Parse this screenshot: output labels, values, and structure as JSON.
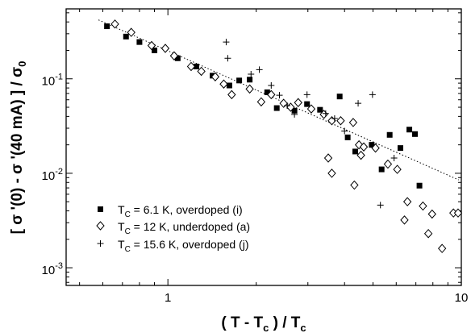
{
  "chart_data": {
    "type": "scatter",
    "x_scale": "log",
    "y_scale": "log",
    "xlim": [
      0.45,
      10.0
    ],
    "ylim": [
      0.00065,
      0.55
    ],
    "x_major_ticks": [
      {
        "value": 1,
        "label": "1"
      },
      {
        "value": 10,
        "label": "10"
      }
    ],
    "y_major_ticks": [
      {
        "value": 0.001,
        "base": "10",
        "exp": "-3"
      },
      {
        "value": 0.01,
        "base": "10",
        "exp": "-2"
      },
      {
        "value": 0.1,
        "base": "10",
        "exp": "-1"
      }
    ],
    "xlabel": {
      "open": "( T - T",
      "sub": "c",
      "mid": " ) / T",
      "sub2": "c"
    },
    "ylabel": {
      "part1": "[ σ '(0) - σ '(40 mA) ] / σ",
      "sub": "0"
    },
    "grid": false,
    "legend_position": "bottom-left",
    "series": [
      {
        "name": "T_C = 6.1 K, overdoped (i)",
        "legend": {
          "pre": "T",
          "sub": "C",
          "post": " = 6.1 K, overdoped (i)"
        },
        "marker": "filled-square",
        "points": [
          [
            0.62,
            0.36
          ],
          [
            0.72,
            0.28
          ],
          [
            0.8,
            0.245
          ],
          [
            0.9,
            0.2
          ],
          [
            1.08,
            0.165
          ],
          [
            1.25,
            0.135
          ],
          [
            1.42,
            0.108
          ],
          [
            1.75,
            0.096
          ],
          [
            1.9,
            0.098
          ],
          [
            1.62,
            0.085
          ],
          [
            2.18,
            0.072
          ],
          [
            2.35,
            0.049
          ],
          [
            2.7,
            0.046
          ],
          [
            2.98,
            0.054
          ],
          [
            3.3,
            0.047
          ],
          [
            3.85,
            0.065
          ],
          [
            4.1,
            0.024
          ],
          [
            4.35,
            0.017
          ],
          [
            4.95,
            0.02
          ],
          [
            5.35,
            0.011
          ],
          [
            5.7,
            0.0255
          ],
          [
            6.2,
            0.0185
          ],
          [
            6.65,
            0.029
          ],
          [
            6.95,
            0.026
          ],
          [
            7.2,
            0.0074
          ]
        ]
      },
      {
        "name": "T_C = 12 K, underdoped (a)",
        "legend": {
          "pre": "T",
          "sub": "C",
          "post": " = 12 K, underdoped (a)"
        },
        "marker": "open-diamond",
        "points": [
          [
            0.66,
            0.38
          ],
          [
            0.75,
            0.31
          ],
          [
            0.88,
            0.225
          ],
          [
            0.98,
            0.21
          ],
          [
            1.05,
            0.175
          ],
          [
            1.2,
            0.135
          ],
          [
            1.3,
            0.12
          ],
          [
            1.45,
            0.105
          ],
          [
            1.55,
            0.088
          ],
          [
            1.65,
            0.068
          ],
          [
            1.9,
            0.078
          ],
          [
            2.08,
            0.057
          ],
          [
            2.25,
            0.068
          ],
          [
            2.48,
            0.055
          ],
          [
            2.62,
            0.05
          ],
          [
            2.78,
            0.056
          ],
          [
            3.08,
            0.048
          ],
          [
            3.4,
            0.042
          ],
          [
            3.62,
            0.036
          ],
          [
            3.88,
            0.036
          ],
          [
            4.28,
            0.0345
          ],
          [
            4.48,
            0.02
          ],
          [
            4.65,
            0.019
          ],
          [
            3.52,
            0.0145
          ],
          [
            3.62,
            0.01
          ],
          [
            4.55,
            0.0155
          ],
          [
            5.1,
            0.0185
          ],
          [
            5.62,
            0.0125
          ],
          [
            4.32,
            0.0075
          ],
          [
            6.05,
            0.011
          ],
          [
            6.55,
            0.005
          ],
          [
            6.4,
            0.0032
          ],
          [
            7.4,
            0.0045
          ],
          [
            7.95,
            0.0037
          ],
          [
            7.72,
            0.0023
          ],
          [
            8.6,
            0.0016
          ],
          [
            9.4,
            0.0038
          ],
          [
            9.75,
            0.0038
          ]
        ]
      },
      {
        "name": "T_C = 15.6 K, overdoped (j)",
        "legend": {
          "pre": "T",
          "sub": "C",
          "post": " = 15.6 K, overdoped (j)"
        },
        "marker": "plus",
        "points": [
          [
            1.58,
            0.245
          ],
          [
            1.6,
            0.165
          ],
          [
            1.92,
            0.112
          ],
          [
            2.05,
            0.125
          ],
          [
            2.25,
            0.085
          ],
          [
            2.4,
            0.067
          ],
          [
            2.55,
            0.052
          ],
          [
            2.7,
            0.042
          ],
          [
            2.98,
            0.068
          ],
          [
            3.45,
            0.043
          ],
          [
            3.7,
            0.038
          ],
          [
            4.0,
            0.028
          ],
          [
            4.45,
            0.055
          ],
          [
            4.98,
            0.068
          ],
          [
            5.3,
            0.0046
          ],
          [
            5.9,
            0.0145
          ]
        ]
      }
    ],
    "fit_line": {
      "style": "dotted",
      "points": [
        [
          0.58,
          0.42
        ],
        [
          9.8,
          0.0085
        ]
      ]
    }
  }
}
